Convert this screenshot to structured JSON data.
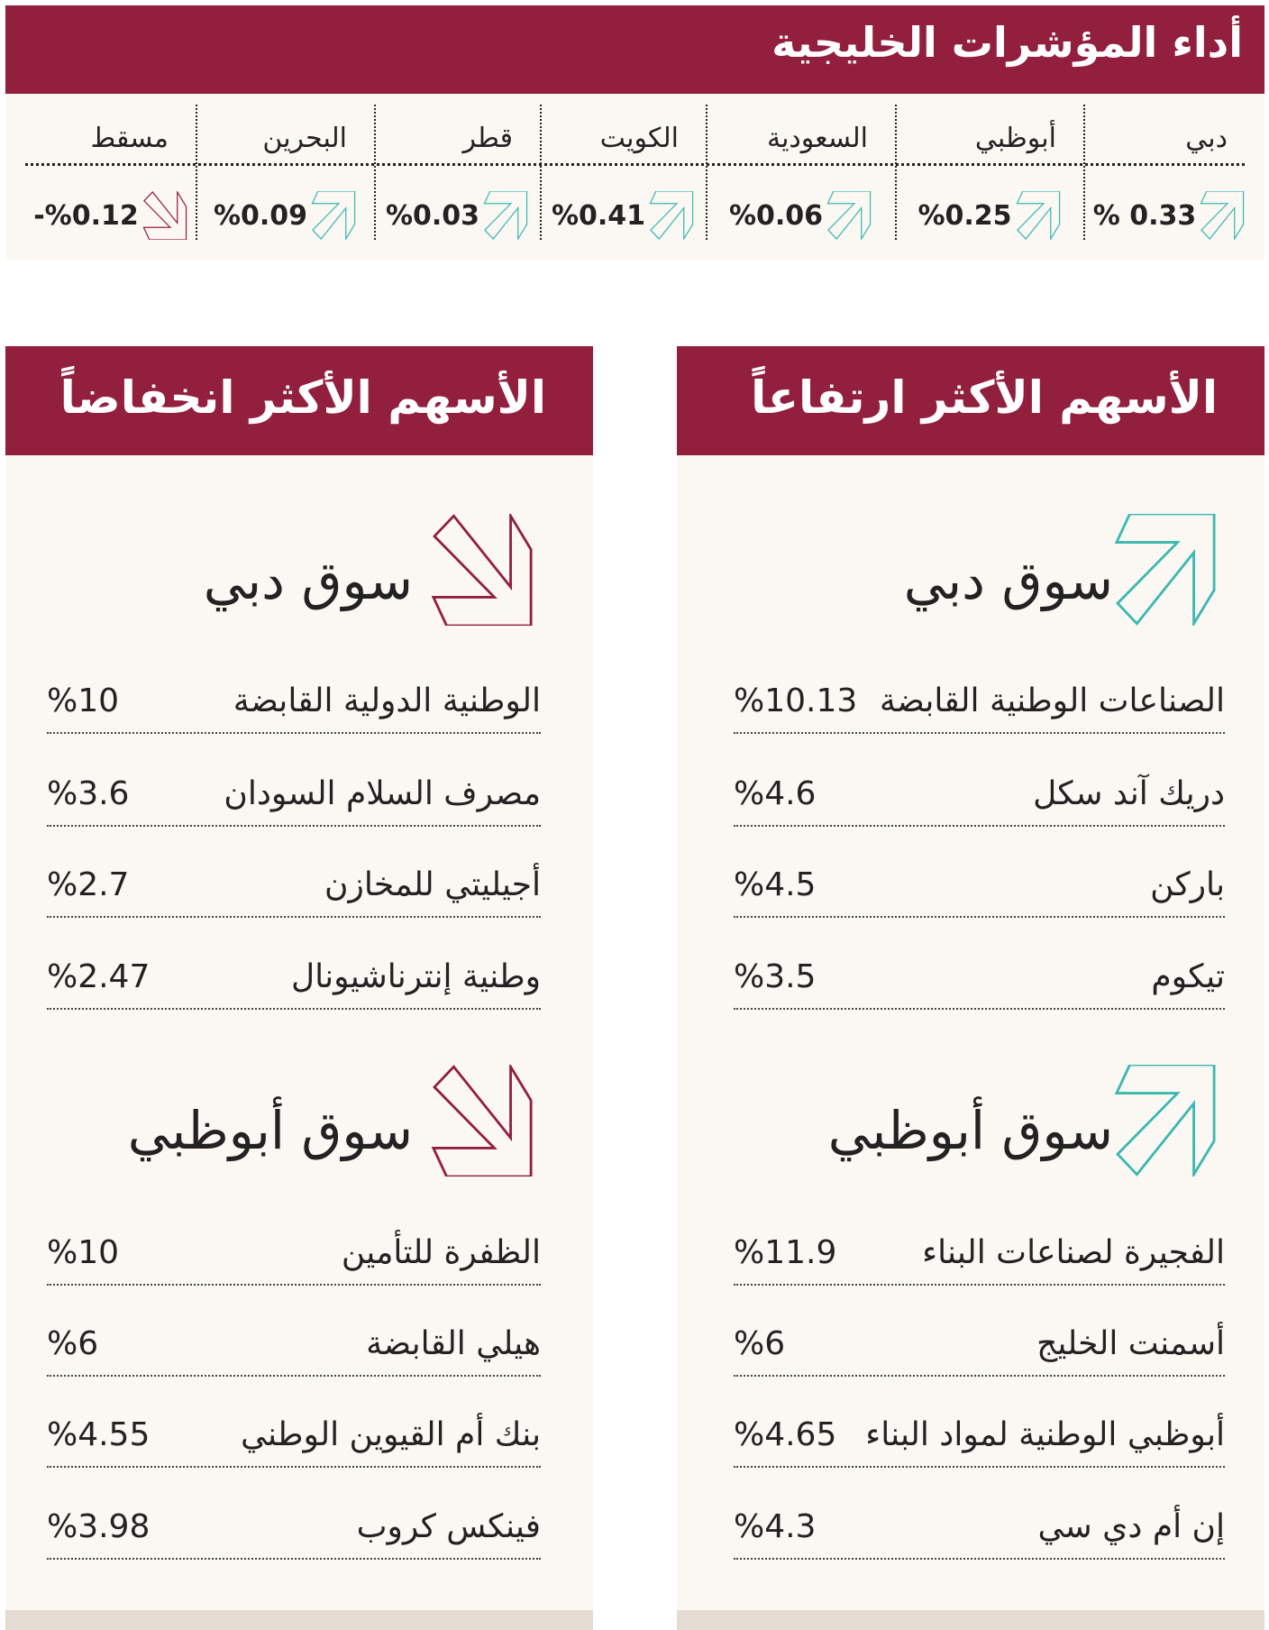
{
  "header": {
    "title": "أداء المؤشرات الخليجية"
  },
  "indices": [
    {
      "name": "دبي",
      "value": "% 0.33",
      "direction": "up"
    },
    {
      "name": "أبوظبي",
      "value": "%0.25",
      "direction": "up"
    },
    {
      "name": "السعودية",
      "value": "%0.06",
      "direction": "up"
    },
    {
      "name": "الكويت",
      "value": "%0.41",
      "direction": "up"
    },
    {
      "name": "قطر",
      "value": "%0.03",
      "direction": "up"
    },
    {
      "name": "البحرين",
      "value": "%0.09",
      "direction": "up"
    },
    {
      "name": "مسقط",
      "value": "-%0.12",
      "direction": "down"
    }
  ],
  "colors": {
    "brand": "#931f3f",
    "up": "#3bb8b0",
    "down": "#931f3f",
    "panel_bg": "#fbf7f3"
  },
  "gainers": {
    "title": "الأسهم الأكثر ارتفاعاً",
    "sections": [
      {
        "title": "سوق دبي",
        "rows": [
          {
            "name": "الصناعات الوطنية القابضة",
            "value": "%10.13"
          },
          {
            "name": "دريك آند سكل",
            "value": "%4.6"
          },
          {
            "name": "باركن",
            "value": "%4.5"
          },
          {
            "name": "تيكوم",
            "value": "%3.5"
          }
        ]
      },
      {
        "title": "سوق أبوظبي",
        "rows": [
          {
            "name": "الفجيرة لصناعات البناء",
            "value": "%11.9"
          },
          {
            "name": "أسمنت الخليج",
            "value": "%6"
          },
          {
            "name": "أبوظبي الوطنية لمواد البناء",
            "value": "%4.65"
          },
          {
            "name": "إن أم دي سي",
            "value": "%4.3"
          }
        ]
      }
    ]
  },
  "losers": {
    "title": "الأسهم الأكثر انخفاضاً",
    "sections": [
      {
        "title": "سوق دبي",
        "rows": [
          {
            "name": "الوطنية الدولية القابضة",
            "value": "%10"
          },
          {
            "name": "مصرف السلام السودان",
            "value": "%3.6"
          },
          {
            "name": "أجيليتي للمخازن",
            "value": "%2.7"
          },
          {
            "name": "وطنية إنترناشيونال",
            "value": "%2.47"
          }
        ]
      },
      {
        "title": "سوق أبوظبي",
        "rows": [
          {
            "name": "الظفرة للتأمين",
            "value": "%10"
          },
          {
            "name": "هيلي القابضة",
            "value": "%6"
          },
          {
            "name": "بنك أم القيوين الوطني",
            "value": "%4.55"
          },
          {
            "name": "فينكس كروب",
            "value": "%3.98"
          }
        ]
      }
    ]
  }
}
